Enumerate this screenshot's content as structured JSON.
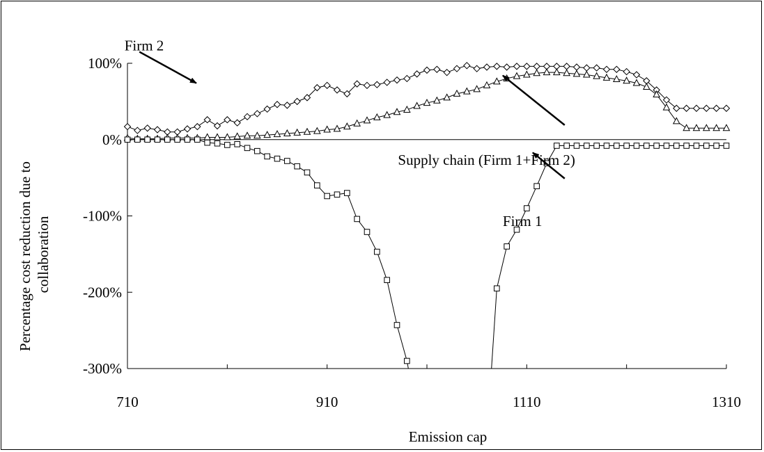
{
  "chart_data": {
    "type": "line",
    "title": "",
    "xlabel": "Emission cap",
    "ylabel": "Percentage cost reduction due to collaboration",
    "ylabel_lines": [
      "Percentage cost reduction due to",
      "collaboration"
    ],
    "xlim": [
      710,
      1310
    ],
    "ylim": [
      -300,
      100
    ],
    "x_ticks": [
      710,
      910,
      1110,
      1310
    ],
    "y_ticks": [
      100,
      0,
      -100,
      -200,
      -300
    ],
    "y_tick_labels": [
      "100%",
      "0%",
      "-100%",
      "-200%",
      "-300%"
    ],
    "grid": false,
    "legend": "none",
    "x": [
      710,
      720,
      730,
      740,
      750,
      760,
      770,
      780,
      790,
      800,
      810,
      820,
      830,
      840,
      850,
      860,
      870,
      880,
      890,
      900,
      910,
      920,
      930,
      940,
      950,
      960,
      970,
      980,
      990,
      1000,
      1010,
      1020,
      1030,
      1040,
      1050,
      1060,
      1070,
      1080,
      1090,
      1100,
      1110,
      1120,
      1130,
      1140,
      1150,
      1160,
      1170,
      1180,
      1190,
      1200,
      1210,
      1220,
      1230,
      1240,
      1250,
      1260,
      1270,
      1280,
      1290,
      1300,
      1310
    ],
    "series": [
      {
        "name": "Firm 2",
        "marker": "diamond",
        "values": [
          17,
          12,
          15,
          13,
          10,
          10,
          14,
          17,
          26,
          18,
          26,
          22,
          30,
          34,
          40,
          46,
          45,
          50,
          55,
          68,
          71,
          65,
          60,
          73,
          71,
          72,
          75,
          78,
          80,
          86,
          91,
          92,
          88,
          93,
          97,
          93,
          95,
          96,
          95,
          96,
          96,
          96,
          96,
          96,
          96,
          95,
          94,
          94,
          92,
          92,
          89,
          85,
          77,
          65,
          52,
          41,
          41,
          41,
          41,
          41,
          41
        ]
      },
      {
        "name": "Supply chain (Firm 1+Firm 2)",
        "marker": "triangle",
        "values": [
          2,
          1,
          1,
          1,
          2,
          2,
          2,
          2,
          3,
          3,
          3,
          4,
          5,
          5,
          6,
          7,
          8,
          9,
          10,
          11,
          13,
          14,
          17,
          21,
          25,
          29,
          32,
          36,
          39,
          44,
          48,
          51,
          55,
          60,
          63,
          66,
          71,
          76,
          80,
          83,
          85,
          87,
          88,
          88,
          87,
          86,
          85,
          83,
          81,
          79,
          77,
          74,
          69,
          59,
          42,
          24,
          15,
          15,
          15,
          15,
          15
        ]
      },
      {
        "name": "Firm 1",
        "marker": "square",
        "values": [
          0,
          0,
          0,
          0,
          0,
          0,
          0,
          0,
          -4,
          -5,
          -7,
          -6,
          -11,
          -15,
          -22,
          -25,
          -28,
          -35,
          -43,
          -60,
          -74,
          -72,
          -70,
          -104,
          -121,
          -147,
          -184,
          -243,
          -290,
          null,
          null,
          null,
          null,
          null,
          null,
          null,
          null,
          -195,
          -140,
          -118,
          -90,
          -61,
          -31,
          -8,
          -8,
          -8,
          -8,
          -8,
          -8,
          -8,
          -8,
          -8,
          -8,
          -8,
          -8,
          -8,
          -8,
          -8,
          -8,
          -8,
          -8
        ]
      }
    ],
    "annotations": [
      {
        "text": "Firm 2",
        "x": 707,
        "y": 117,
        "arrow_to": [
          779,
          74
        ],
        "arrow_from": [
          722,
          115
        ]
      },
      {
        "text": "Supply chain (Firm 1+Firm 2)",
        "x": 981,
        "y": -33,
        "arrow_to": [
          1086,
          84
        ],
        "arrow_from": [
          1148,
          19
        ]
      },
      {
        "text": "Firm 1",
        "x": 1086,
        "y": -113,
        "arrow_to": [
          1116,
          -17
        ],
        "arrow_from": [
          1148,
          -51
        ]
      }
    ]
  }
}
